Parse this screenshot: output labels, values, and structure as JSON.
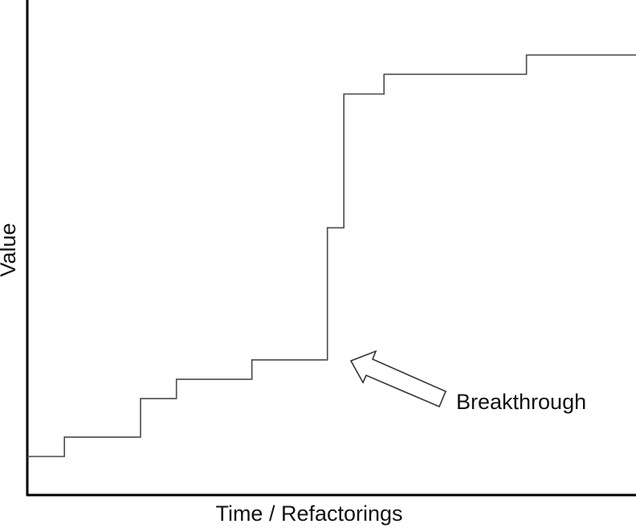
{
  "chart_data": {
    "type": "line",
    "line_style": "step",
    "title": "",
    "xlabel": "Time / Refactorings",
    "ylabel": "Value",
    "xlim": [
      0,
      100
    ],
    "ylim": [
      0,
      100
    ],
    "grid": false,
    "axis_ticks": false,
    "series": [
      {
        "values": [
          {
            "x": 0.0,
            "y": 7.8
          },
          {
            "x": 6.1,
            "y": 11.7
          },
          {
            "x": 18.6,
            "y": 19.5
          },
          {
            "x": 24.5,
            "y": 23.4
          },
          {
            "x": 36.9,
            "y": 27.3
          },
          {
            "x": 49.3,
            "y": 54.0
          },
          {
            "x": 52.0,
            "y": 81.0
          },
          {
            "x": 58.6,
            "y": 85.0
          },
          {
            "x": 82.0,
            "y": 88.9
          },
          {
            "x": 100.0,
            "y": 88.9
          }
        ]
      }
    ],
    "annotations": [
      {
        "text": "Breakthrough",
        "points_to": {
          "x": 52.0,
          "y": 27.3
        }
      }
    ]
  },
  "colors": {
    "axis": "#000000",
    "line": "#4a4a4a",
    "arrow_fill": "#ffffff",
    "text": "#111111"
  }
}
